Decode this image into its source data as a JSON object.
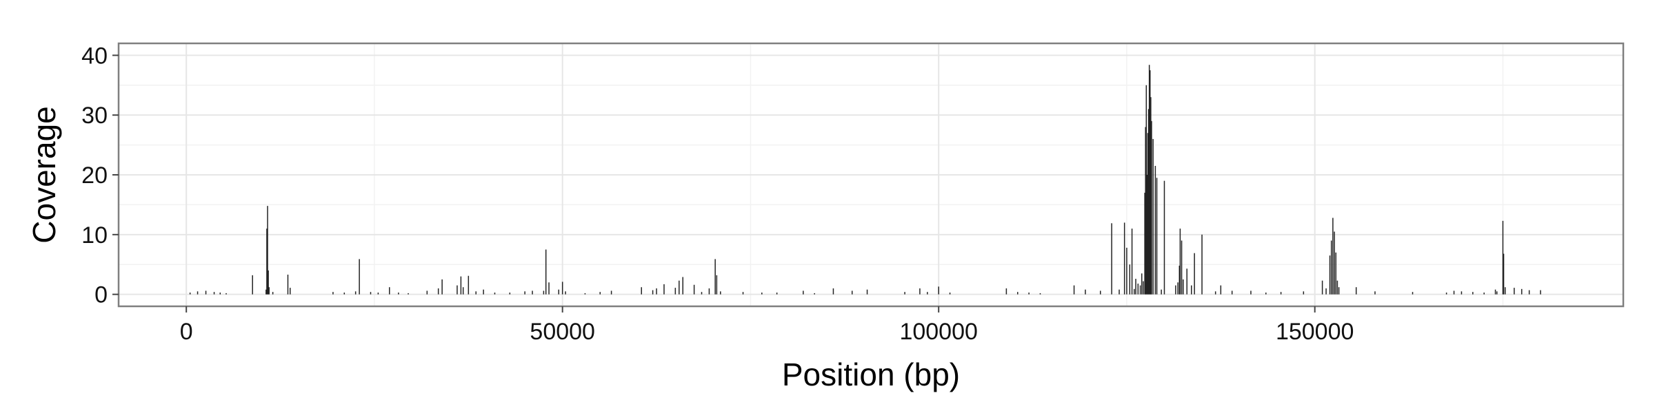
{
  "chart_data": {
    "type": "bar",
    "title": "",
    "xlabel": "Position (bp)",
    "ylabel": "Coverage",
    "xlim": [
      -9000,
      191000
    ],
    "ylim": [
      -2,
      42
    ],
    "x_ticks": [
      0,
      50000,
      100000,
      150000
    ],
    "x_tick_labels": [
      "0",
      "50000",
      "100000",
      "150000"
    ],
    "y_ticks": [
      0,
      10,
      20,
      30,
      40
    ],
    "y_tick_labels": [
      "0",
      "10",
      "20",
      "30",
      "40"
    ],
    "grid": true,
    "legend": "none",
    "colors": {
      "bar": "#222222",
      "panel_border": "#7f7f7f",
      "grid_major": "#e6e6e6",
      "grid_minor": "#f2f2f2"
    },
    "x": [
      500,
      1500,
      2600,
      3700,
      4500,
      5300,
      8800,
      10600,
      10700,
      10800,
      10900,
      11000,
      11500,
      13500,
      13800,
      19500,
      21000,
      22500,
      23000,
      24500,
      25500,
      27000,
      28200,
      29500,
      32000,
      33500,
      34000,
      36000,
      36500,
      36800,
      37500,
      38500,
      39500,
      41000,
      43000,
      45000,
      46000,
      47500,
      47800,
      48200,
      49500,
      50000,
      50400,
      53000,
      55000,
      56500,
      60500,
      62000,
      62500,
      63500,
      65000,
      65500,
      66000,
      67500,
      68500,
      69500,
      70300,
      70500,
      71000,
      74000,
      76500,
      78500,
      82000,
      83500,
      86000,
      88500,
      90500,
      95500,
      97500,
      98500,
      100000,
      101500,
      109000,
      110500,
      112000,
      113500,
      118000,
      119500,
      121500,
      123000,
      124000,
      124700,
      125000,
      125400,
      125700,
      126000,
      126200,
      126500,
      126800,
      127000,
      127200,
      127400,
      127500,
      127600,
      127700,
      127800,
      127900,
      128000,
      128100,
      128200,
      128300,
      128500,
      128800,
      129000,
      129600,
      130000,
      131500,
      131800,
      132000,
      132100,
      132300,
      132500,
      133000,
      133600,
      134000,
      135000,
      136800,
      137500,
      139000,
      141500,
      143500,
      145500,
      148500,
      151000,
      151500,
      152000,
      152200,
      152400,
      152600,
      152800,
      153000,
      153200,
      155500,
      158000,
      163000,
      167500,
      168500,
      169500,
      171000,
      172500,
      174000,
      174200,
      175000,
      175100,
      175300,
      176500,
      177500,
      178500,
      180000
    ],
    "values": [
      0.3,
      0.5,
      0.6,
      0.4,
      0.3,
      0.2,
      3.2,
      0.8,
      11.0,
      14.8,
      4.0,
      1.2,
      0.4,
      3.3,
      1.1,
      0.4,
      0.3,
      0.5,
      5.9,
      0.4,
      0.3,
      1.2,
      0.3,
      0.2,
      0.6,
      1.0,
      2.5,
      1.5,
      3.0,
      1.2,
      3.1,
      0.5,
      0.8,
      0.3,
      0.3,
      0.5,
      0.6,
      0.6,
      7.5,
      2.0,
      0.8,
      2.1,
      0.5,
      0.2,
      0.4,
      0.6,
      1.2,
      0.7,
      1.0,
      1.7,
      1.1,
      2.3,
      2.9,
      1.6,
      0.4,
      1.0,
      5.9,
      3.2,
      0.5,
      0.4,
      0.3,
      0.3,
      0.6,
      0.2,
      1.0,
      0.6,
      0.8,
      0.4,
      1.0,
      0.4,
      1.3,
      0.3,
      1.0,
      0.4,
      0.3,
      0.2,
      1.5,
      0.8,
      0.6,
      11.9,
      0.8,
      12.0,
      7.8,
      5.0,
      11.0,
      0.9,
      2.6,
      1.8,
      1.5,
      3.5,
      2.2,
      17.0,
      28.0,
      35.0,
      20.0,
      27.0,
      31.0,
      38.4,
      37.5,
      33.0,
      29.0,
      26.0,
      21.5,
      19.5,
      0.8,
      19.0,
      1.5,
      2.0,
      4.8,
      11.0,
      9.0,
      2.5,
      4.3,
      1.5,
      6.9,
      10.0,
      0.5,
      1.5,
      0.6,
      0.6,
      0.3,
      0.4,
      0.5,
      2.3,
      1.0,
      6.5,
      9.0,
      12.8,
      10.5,
      7.0,
      2.3,
      1.2,
      1.2,
      0.5,
      0.4,
      0.3,
      0.6,
      0.5,
      0.4,
      0.3,
      0.8,
      0.5,
      12.3,
      6.8,
      1.2,
      1.1,
      0.9,
      0.7,
      0.7
    ]
  }
}
